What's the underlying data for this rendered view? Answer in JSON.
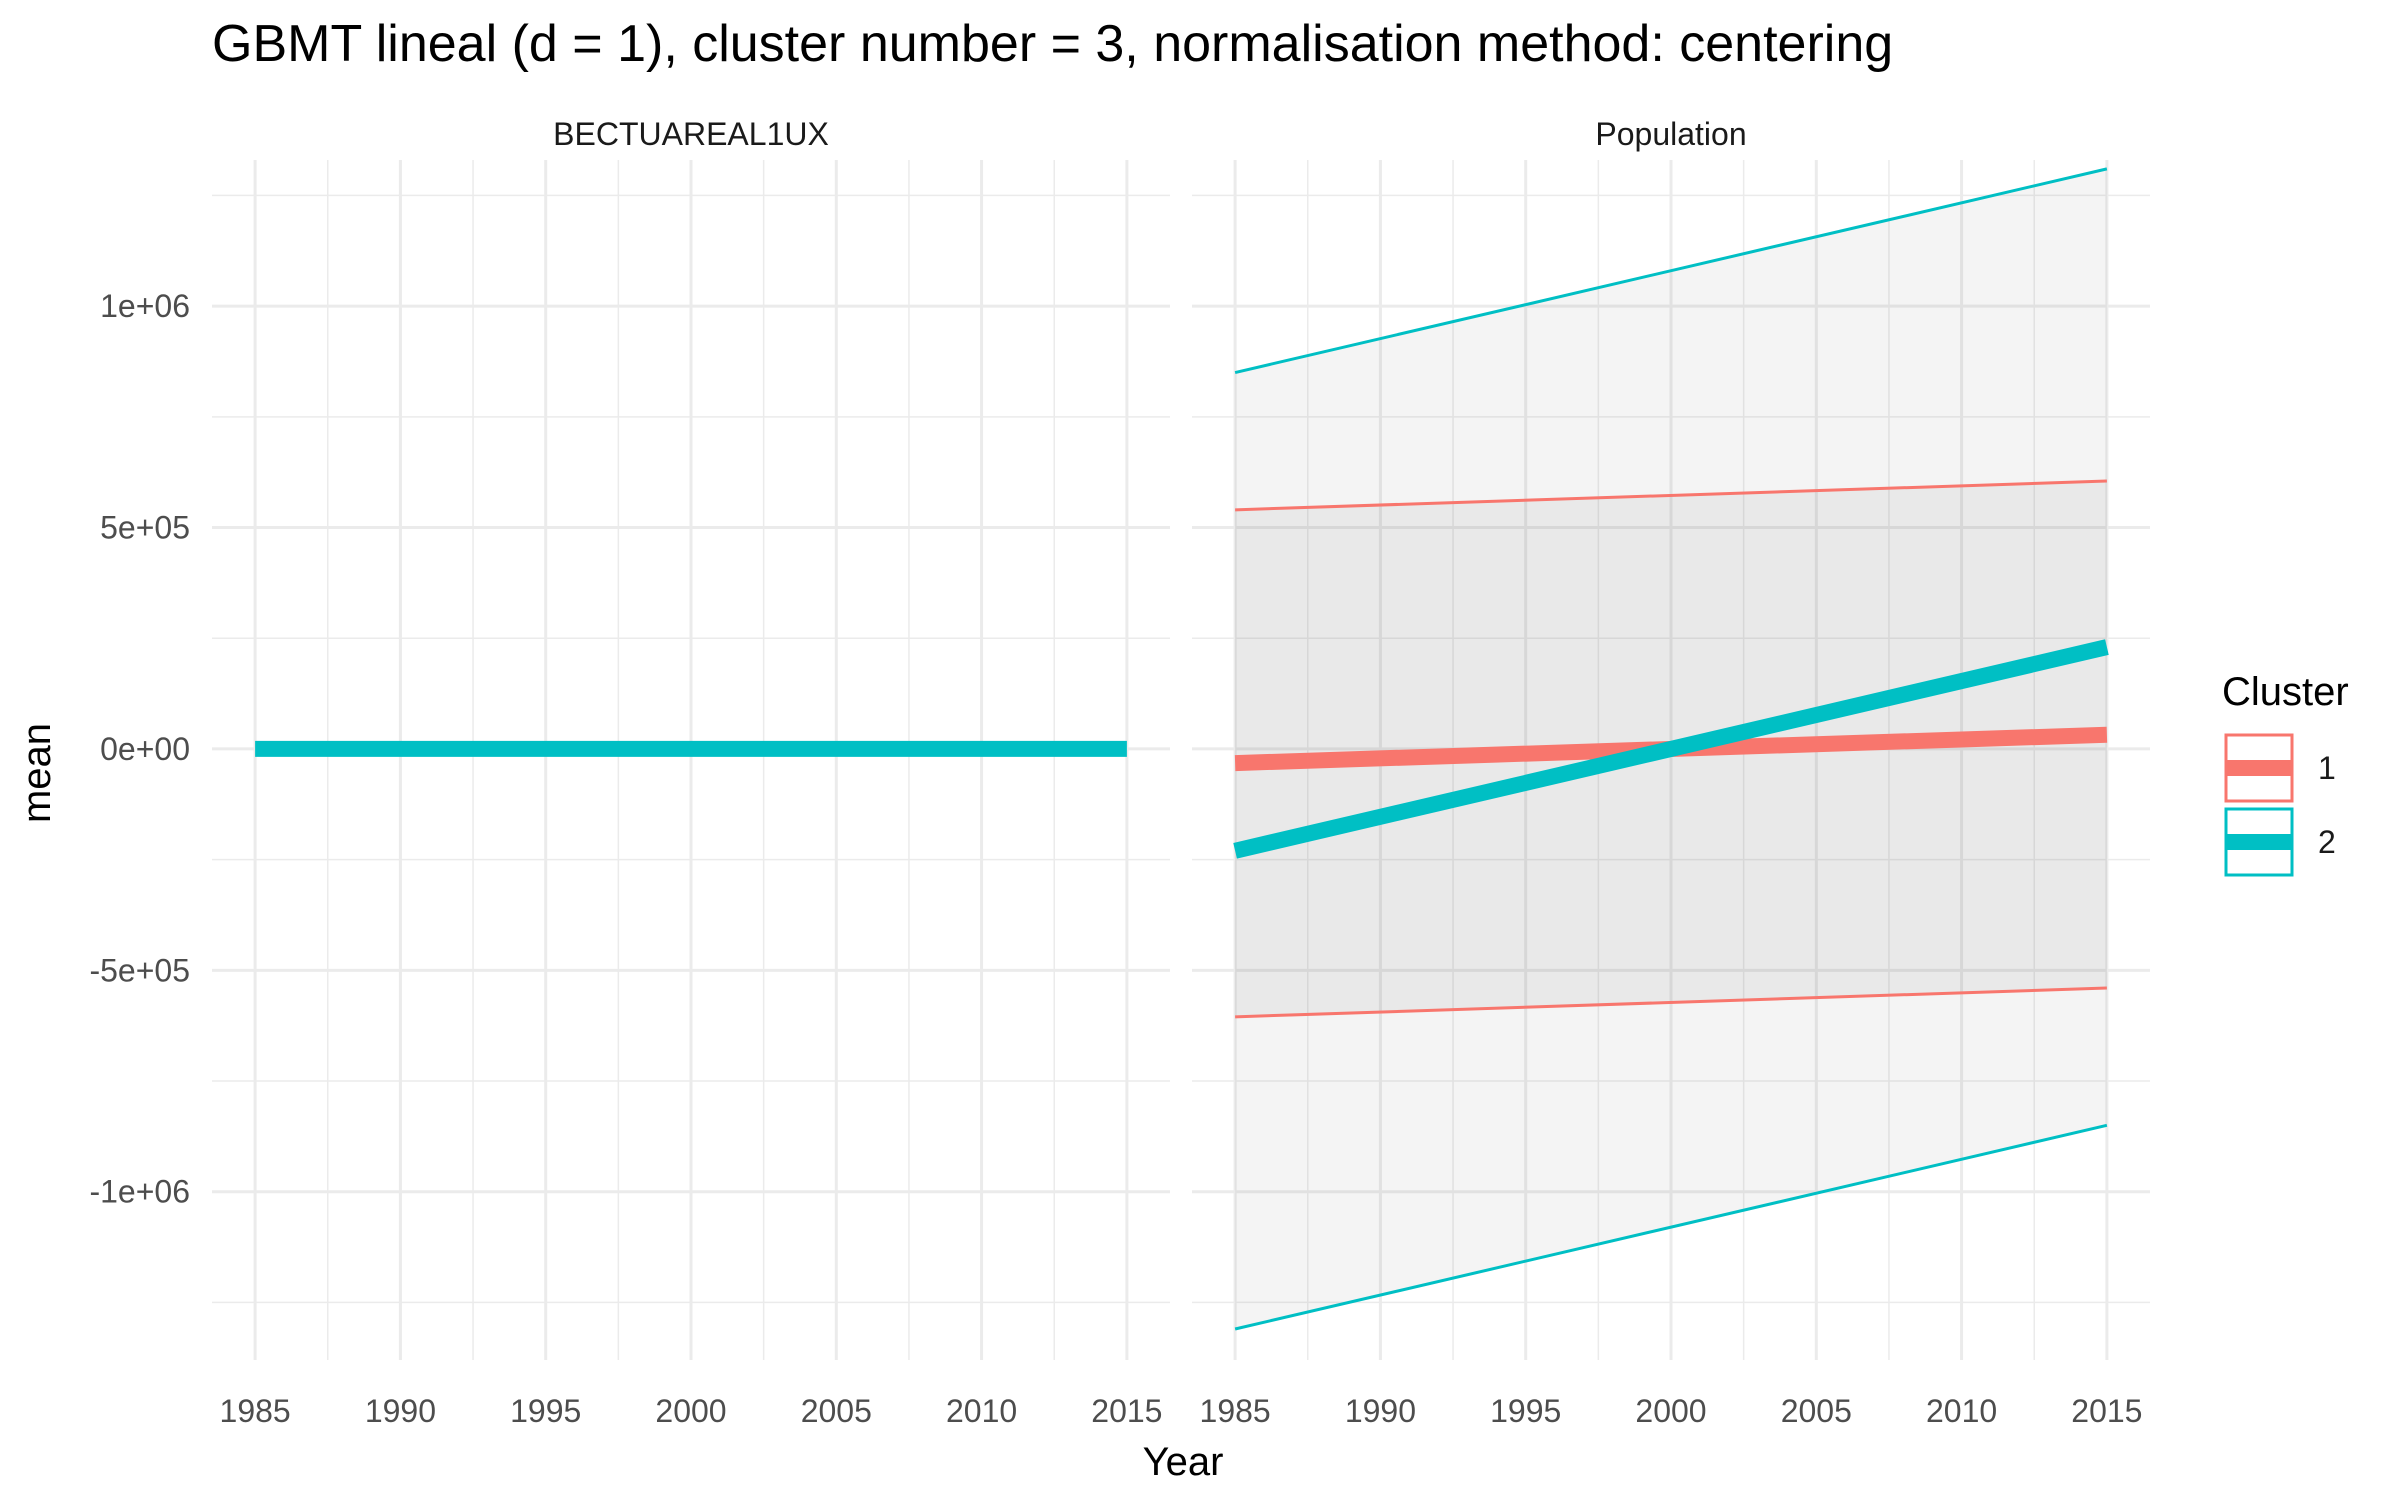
{
  "chart_data": {
    "type": "line",
    "title": "GBMT lineal (d = 1), cluster number = 3, normalisation method: centering",
    "xlabel": "Year",
    "ylabel": "mean",
    "xlim": [
      1985,
      2015
    ],
    "ylim": [
      -1380000,
      1330000
    ],
    "x_ticks": [
      1985,
      1990,
      1995,
      2000,
      2005,
      2010,
      2015
    ],
    "x_tick_labels": [
      "1985",
      "1990",
      "1995",
      "2000",
      "2005",
      "2010",
      "2015"
    ],
    "y_ticks": [
      -1000000,
      -500000,
      0,
      500000,
      1000000
    ],
    "y_tick_labels": [
      "-1e+06",
      "-5e+05",
      "0e+00",
      "5e+05",
      "1e+06"
    ],
    "grid": true,
    "legend": {
      "title": "Cluster",
      "position": "right",
      "entries": [
        {
          "label": "1",
          "color": "#F8766D"
        },
        {
          "label": "2",
          "color": "#00BFC4"
        }
      ]
    },
    "panels": [
      {
        "strip": "BECTUAREAL1UX",
        "series": [
          {
            "name": "2",
            "color": "#00BFC4",
            "x": [
              1985,
              2015
            ],
            "mean": [
              0,
              0
            ]
          }
        ]
      },
      {
        "strip": "Population",
        "series": [
          {
            "name": "1",
            "color": "#F8766D",
            "x": [
              1985,
              2015
            ],
            "mean": [
              -32000,
              32000
            ],
            "lower": [
              -605000,
              -540000
            ],
            "upper": [
              540000,
              605000
            ]
          },
          {
            "name": "2",
            "color": "#00BFC4",
            "x": [
              1985,
              2015
            ],
            "mean": [
              -230000,
              230000
            ],
            "lower": [
              -1310000,
              -850000
            ],
            "upper": [
              850000,
              1310000
            ]
          }
        ]
      }
    ]
  }
}
